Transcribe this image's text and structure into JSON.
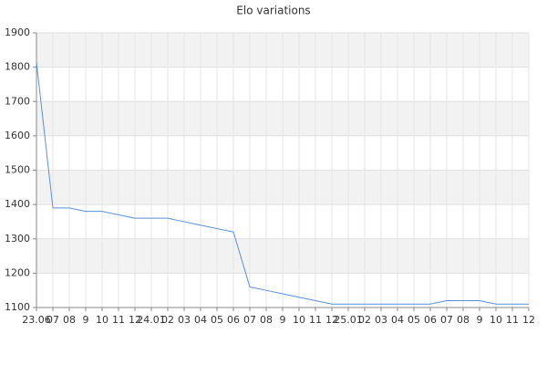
{
  "chart_data": {
    "type": "line",
    "title": "Elo variations",
    "categories": [
      "23.06",
      "07",
      "08",
      "9",
      "10",
      "11",
      "12",
      "24.01",
      "02",
      "03",
      "04",
      "05",
      "06",
      "07",
      "08",
      "9",
      "10",
      "11",
      "12",
      "25.01",
      "02",
      "03",
      "04",
      "05",
      "06",
      "07",
      "08",
      "9",
      "10",
      "11",
      "12"
    ],
    "series": [
      {
        "name": "Elo",
        "color": "#5b8fd9",
        "values": [
          1815,
          1390,
          1390,
          1380,
          1380,
          1370,
          1360,
          1360,
          1360,
          1350,
          1340,
          1330,
          1320,
          1160,
          1150,
          1140,
          1130,
          1120,
          1110,
          1110,
          1110,
          1110,
          1110,
          1110,
          1110,
          1120,
          1120,
          1120,
          1110,
          1110,
          1110
        ]
      }
    ],
    "ylim": [
      1100,
      1900
    ],
    "yticks": [
      1100,
      1200,
      1300,
      1400,
      1500,
      1600,
      1700,
      1800,
      1900
    ],
    "grid": true,
    "alternate_bands": true
  }
}
